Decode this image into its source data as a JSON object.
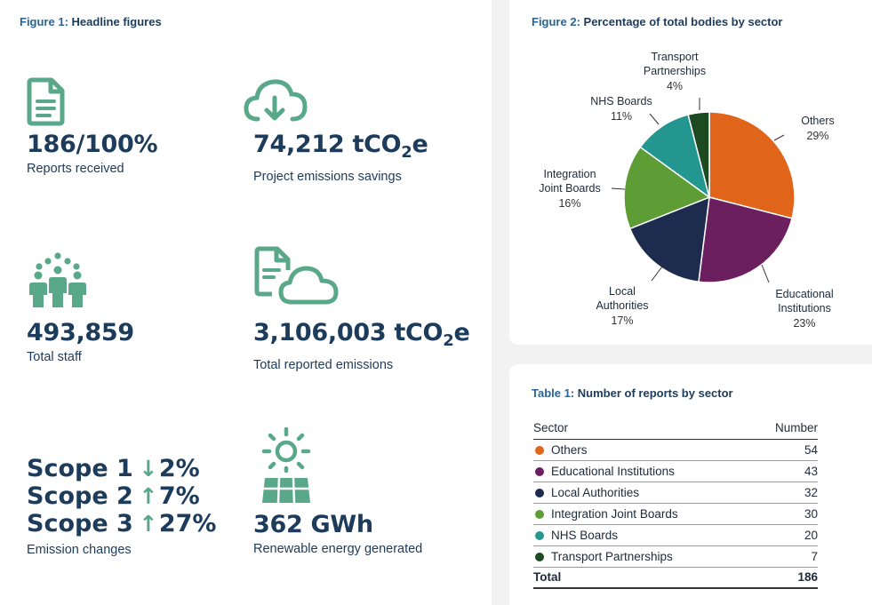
{
  "figure1": {
    "number": "Figure 1:",
    "title": "Headline figures",
    "tiles": [
      {
        "icon": "document-icon",
        "value": "186/100%",
        "caption": "Reports received"
      },
      {
        "icon": "cloud-download-icon",
        "value_main": "74,212 tCO",
        "value_sub": "2",
        "value_end": "e",
        "caption": "Project emissions savings"
      },
      {
        "icon": "people-icon",
        "value": "493,859",
        "caption": "Total staff"
      },
      {
        "icon": "document-cloud-icon",
        "value_main": "3,106,003 tCO",
        "value_sub": "2",
        "value_end": "e",
        "caption": "Total reported emissions"
      },
      {
        "icon": "solar-panel-icon",
        "value": "362 GWh",
        "caption": "Renewable energy generated"
      }
    ],
    "scopes": [
      {
        "label": "Scope 1",
        "direction": "down",
        "change": "2%"
      },
      {
        "label": "Scope 2",
        "direction": "up",
        "change": "7%"
      },
      {
        "label": "Scope 3",
        "direction": "up",
        "change": "27%"
      }
    ],
    "scopes_caption": "Emission changes",
    "accent": "#5aa88a"
  },
  "figure2": {
    "number": "Figure 2:",
    "title": "Percentage of total bodies by sector"
  },
  "chart_data": {
    "type": "pie",
    "title": "Percentage of total bodies by sector",
    "slices": [
      {
        "label": "Others",
        "value": 29,
        "pct": "29%",
        "color": "#e0641a"
      },
      {
        "label": "Educational Institutions",
        "value": 23,
        "pct": "23%",
        "color": "#6b1f5e"
      },
      {
        "label": "Local Authorities",
        "value": 17,
        "pct": "17%",
        "color": "#1c2b4e"
      },
      {
        "label": "Integration Joint Boards",
        "value": 16,
        "pct": "16%",
        "color": "#5e9c35"
      },
      {
        "label": "NHS Boards",
        "value": 11,
        "pct": "11%",
        "color": "#23968f"
      },
      {
        "label": "Transport Partnerships",
        "value": 4,
        "pct": "4%",
        "color": "#1e4a22"
      }
    ],
    "labels_wrapped": [
      [
        "Others"
      ],
      [
        "Educational",
        "Institutions"
      ],
      [
        "Local",
        "Authorities"
      ],
      [
        "Integration",
        "Joint Boards"
      ],
      [
        "NHS Boards"
      ],
      [
        "Transport",
        "Partnerships"
      ]
    ]
  },
  "table1": {
    "number": "Table 1:",
    "title": "Number of reports by sector",
    "headers": [
      "Sector",
      "Number"
    ],
    "rows": [
      {
        "sector": "Others",
        "number": "54",
        "color": "#e0641a"
      },
      {
        "sector": "Educational Institutions",
        "number": "43",
        "color": "#6b1f5e"
      },
      {
        "sector": "Local Authorities",
        "number": "32",
        "color": "#1c2b4e"
      },
      {
        "sector": "Integration Joint Boards",
        "number": "30",
        "color": "#5e9c35"
      },
      {
        "sector": "NHS Boards",
        "number": "20",
        "color": "#23968f"
      },
      {
        "sector": "Transport Partnerships",
        "number": "7",
        "color": "#1e4a22"
      }
    ],
    "total_label": "Total",
    "total_value": "186"
  }
}
